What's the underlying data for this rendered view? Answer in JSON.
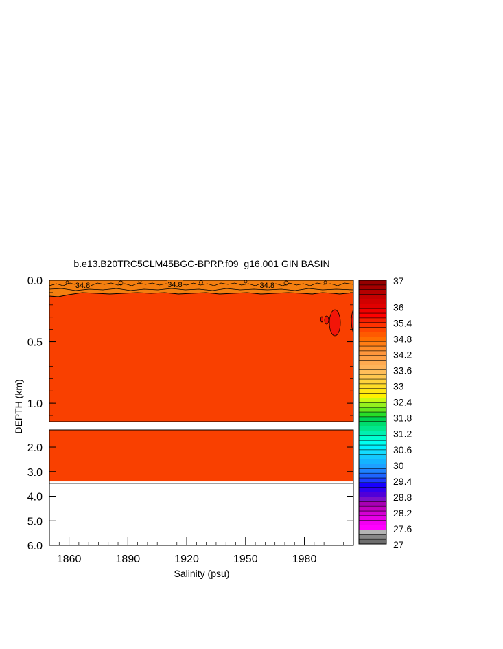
{
  "chart_data": {
    "type": "heatmap",
    "title": "b.e13.B20TRC5CLM45BGC-BPRP.f09_g16.001 GIN BASIN",
    "xlabel": "Salinity (psu)",
    "ylabel": "DEPTH (km)",
    "x_range": [
      1850,
      2005
    ],
    "x_ticks": [
      1860,
      1890,
      1920,
      1950,
      1980
    ],
    "x_tick_labels": [
      "1860",
      "1890",
      "1920",
      "1950",
      "1980"
    ],
    "upper_panel": {
      "ylim": [
        0.0,
        1.15
      ],
      "y_ticks": [
        0.0,
        0.5,
        1.0
      ],
      "y_tick_labels": [
        "0.0",
        "0.5",
        "1.0"
      ],
      "surface_layer_depth": 0.12,
      "contour_labels": [
        {
          "x": 1867,
          "y": 0.045,
          "text": "34.8"
        },
        {
          "x": 1914,
          "y": 0.04,
          "text": "34.8"
        },
        {
          "x": 1961,
          "y": 0.045,
          "text": "34.8"
        }
      ]
    },
    "lower_panel": {
      "ylim": [
        1.3,
        6.0
      ],
      "y_ticks": [
        2.0,
        3.0,
        4.0,
        5.0,
        6.0
      ],
      "y_tick_labels": [
        "2.0",
        "3.0",
        "4.0",
        "5.0",
        "6.0"
      ],
      "filled_to_depth": 3.4
    },
    "colorbar": {
      "min": 27,
      "max": 37,
      "labels": [
        "37",
        "36",
        "35.4",
        "34.8",
        "34.2",
        "33.6",
        "33",
        "32.4",
        "31.8",
        "31.2",
        "30.6",
        "30",
        "29.4",
        "28.8",
        "28.2",
        "27.6",
        "27"
      ],
      "colors": [
        "#6e6e6e",
        "#888888",
        "#b4b4b4",
        "#ff00ff",
        "#f200f2",
        "#e600e6",
        "#d400d4",
        "#c000c0",
        "#a800b4",
        "#7a10c8",
        "#5000d8",
        "#3000f0",
        "#1800ff",
        "#1c3cff",
        "#1e64ff",
        "#1e82ff",
        "#1ea0ff",
        "#14b4ff",
        "#14c8ff",
        "#14dcff",
        "#00f0ff",
        "#00fff0",
        "#00ffd0",
        "#00f0b0",
        "#00e68c",
        "#00dc6e",
        "#00d250",
        "#28dc28",
        "#64e61e",
        "#96f01e",
        "#c8fa14",
        "#fff000",
        "#ffe614",
        "#ffdc28",
        "#ffd23c",
        "#ffc850",
        "#ffbe5a",
        "#ffb45a",
        "#ffaa50",
        "#ffa046",
        "#ff963c",
        "#ff8c28",
        "#ff7d14",
        "#ff6e00",
        "#ff5a00",
        "#ff4600",
        "#ff3200",
        "#f51e00",
        "#ff0000",
        "#f00000",
        "#e10000",
        "#d20000",
        "#c30000",
        "#b40000",
        "#a50000",
        "#960000"
      ]
    },
    "field": {
      "dominant_color": "#f94000",
      "surface_color": "#f47f10",
      "contour_color": "#000000",
      "anomaly_color": "#f21508",
      "missing_color": "#ffffff"
    }
  }
}
